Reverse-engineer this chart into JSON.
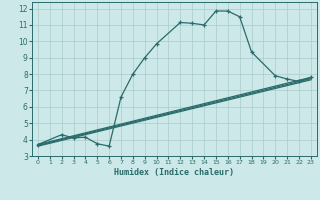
{
  "bg_color": "#cde8e8",
  "grid_color": "#aacccc",
  "line_color": "#2a6b6b",
  "xlabel": "Humidex (Indice chaleur)",
  "xlim": [
    -0.5,
    23.5
  ],
  "ylim": [
    3,
    12.4
  ],
  "xticks": [
    0,
    1,
    2,
    3,
    4,
    5,
    6,
    7,
    8,
    9,
    10,
    11,
    12,
    13,
    14,
    15,
    16,
    17,
    18,
    19,
    20,
    21,
    22,
    23
  ],
  "yticks": [
    3,
    4,
    5,
    6,
    7,
    8,
    9,
    10,
    11,
    12
  ],
  "line1_x": [
    0,
    2,
    3,
    4,
    5,
    6,
    7,
    8,
    9,
    10,
    12,
    13,
    14,
    15,
    16,
    17,
    18,
    20,
    21,
    22,
    23
  ],
  "line1_y": [
    3.7,
    4.3,
    4.1,
    4.15,
    3.75,
    3.6,
    6.6,
    8.0,
    9.0,
    9.85,
    11.15,
    11.1,
    11.0,
    11.85,
    11.85,
    11.5,
    9.35,
    7.9,
    7.7,
    7.55,
    7.8
  ],
  "line2_x": [
    0,
    23
  ],
  "line2_y": [
    3.7,
    7.8
  ],
  "line3_x": [
    0,
    23
  ],
  "line3_y": [
    3.65,
    7.72
  ],
  "line4_x": [
    0,
    23
  ],
  "line4_y": [
    3.6,
    7.65
  ]
}
